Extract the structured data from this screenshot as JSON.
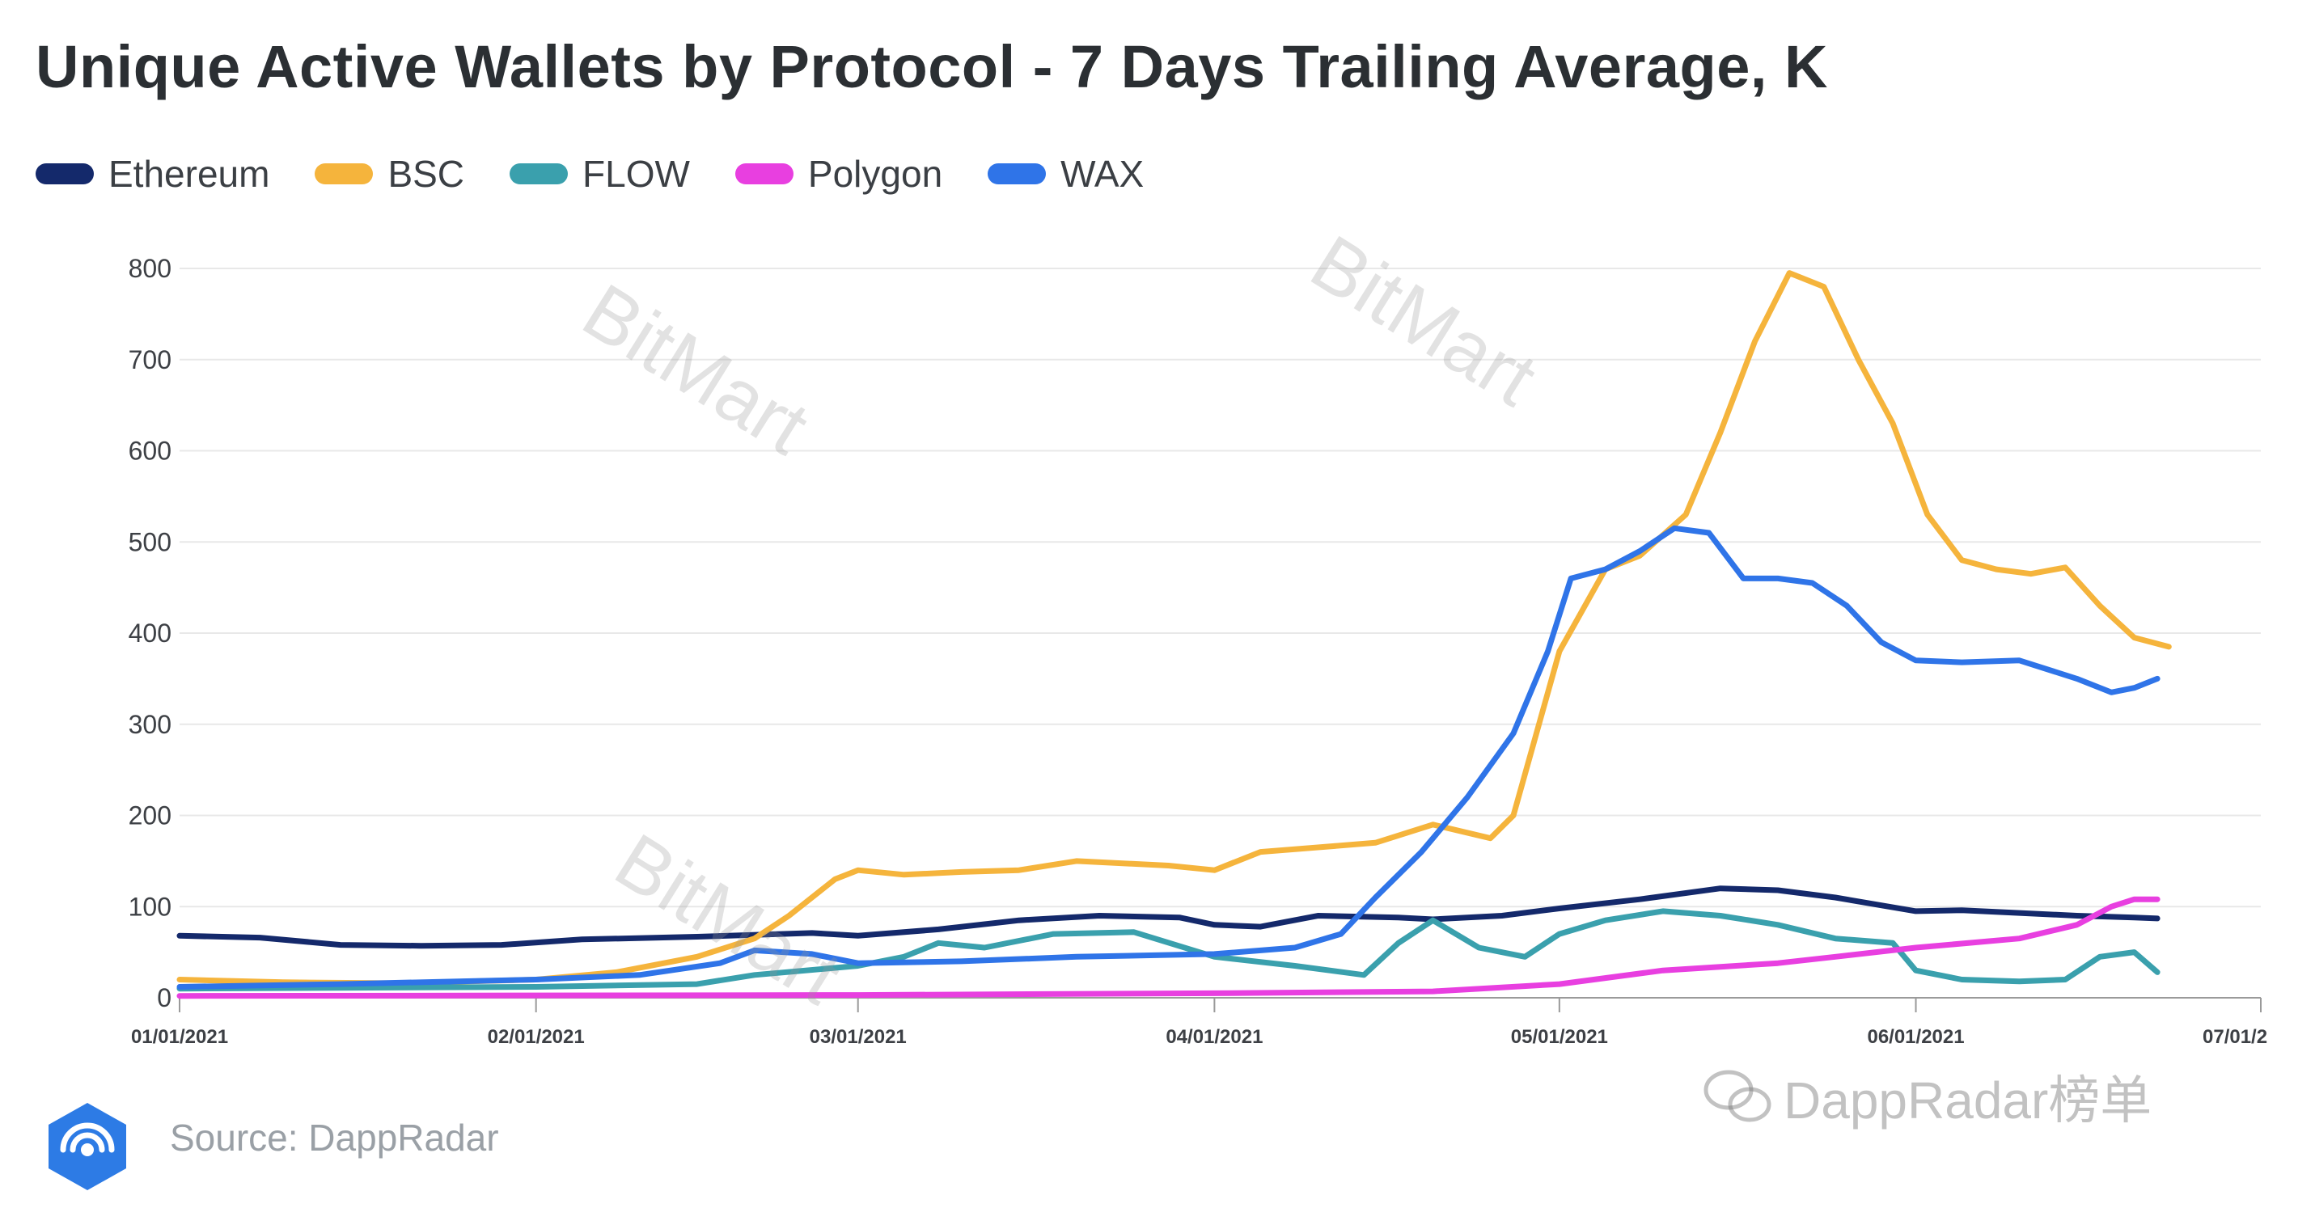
{
  "header": {
    "title": "Unique Active Wallets by Protocol - 7 Days Trailing Average, K"
  },
  "legend": [
    {
      "label": "Ethereum",
      "color": "#14296b"
    },
    {
      "label": "BSC",
      "color": "#f5b43c"
    },
    {
      "label": "FLOW",
      "color": "#3aa0ad"
    },
    {
      "label": "Polygon",
      "color": "#e83fe0"
    },
    {
      "label": "WAX",
      "color": "#2f74e8"
    }
  ],
  "footer": {
    "source": "Source: DappRadar",
    "mark": "DappRadar榜单"
  },
  "watermarks": [
    "BitMart",
    "BitMart",
    "BitMart"
  ],
  "chart_data": {
    "type": "line",
    "title": "Unique Active Wallets by Protocol - 7 Days Trailing Average, K",
    "ylim": [
      0,
      800
    ],
    "yticks": [
      0,
      100,
      200,
      300,
      400,
      500,
      600,
      700,
      800
    ],
    "xlim": [
      "2021-01-01",
      "2021-07-01"
    ],
    "xticks": [
      "01/01/2021",
      "02/01/2021",
      "03/01/2021",
      "04/01/2021",
      "05/01/2021",
      "06/01/2021",
      "07/01/2"
    ],
    "grid": true,
    "legend_position": "top-left",
    "series": [
      {
        "name": "Ethereum",
        "color": "#14296b",
        "points": [
          [
            "2021-01-01",
            68
          ],
          [
            "2021-01-08",
            66
          ],
          [
            "2021-01-15",
            58
          ],
          [
            "2021-01-22",
            57
          ],
          [
            "2021-01-29",
            58
          ],
          [
            "2021-02-05",
            64
          ],
          [
            "2021-02-15",
            67
          ],
          [
            "2021-02-25",
            71
          ],
          [
            "2021-03-01",
            68
          ],
          [
            "2021-03-08",
            75
          ],
          [
            "2021-03-15",
            85
          ],
          [
            "2021-03-22",
            90
          ],
          [
            "2021-03-29",
            88
          ],
          [
            "2021-04-01",
            80
          ],
          [
            "2021-04-05",
            78
          ],
          [
            "2021-04-10",
            90
          ],
          [
            "2021-04-17",
            88
          ],
          [
            "2021-04-20",
            86
          ],
          [
            "2021-04-26",
            90
          ],
          [
            "2021-05-01",
            98
          ],
          [
            "2021-05-08",
            108
          ],
          [
            "2021-05-15",
            120
          ],
          [
            "2021-05-20",
            118
          ],
          [
            "2021-05-25",
            110
          ],
          [
            "2021-06-01",
            95
          ],
          [
            "2021-06-05",
            96
          ],
          [
            "2021-06-10",
            93
          ],
          [
            "2021-06-15",
            90
          ],
          [
            "2021-06-20",
            88
          ],
          [
            "2021-06-22",
            87
          ]
        ]
      },
      {
        "name": "BSC",
        "color": "#f5b43c",
        "points": [
          [
            "2021-01-01",
            20
          ],
          [
            "2021-01-10",
            17
          ],
          [
            "2021-01-20",
            16
          ],
          [
            "2021-02-01",
            20
          ],
          [
            "2021-02-08",
            28
          ],
          [
            "2021-02-15",
            45
          ],
          [
            "2021-02-20",
            65
          ],
          [
            "2021-02-23",
            90
          ],
          [
            "2021-02-27",
            130
          ],
          [
            "2021-03-01",
            140
          ],
          [
            "2021-03-05",
            135
          ],
          [
            "2021-03-10",
            138
          ],
          [
            "2021-03-15",
            140
          ],
          [
            "2021-03-20",
            150
          ],
          [
            "2021-03-28",
            145
          ],
          [
            "2021-04-01",
            140
          ],
          [
            "2021-04-05",
            160
          ],
          [
            "2021-04-10",
            165
          ],
          [
            "2021-04-15",
            170
          ],
          [
            "2021-04-20",
            190
          ],
          [
            "2021-04-25",
            175
          ],
          [
            "2021-04-27",
            200
          ],
          [
            "2021-05-01",
            380
          ],
          [
            "2021-05-05",
            470
          ],
          [
            "2021-05-08",
            485
          ],
          [
            "2021-05-12",
            530
          ],
          [
            "2021-05-15",
            620
          ],
          [
            "2021-05-18",
            720
          ],
          [
            "2021-05-21",
            795
          ],
          [
            "2021-05-24",
            780
          ],
          [
            "2021-05-27",
            700
          ],
          [
            "2021-05-30",
            630
          ],
          [
            "2021-06-02",
            530
          ],
          [
            "2021-06-05",
            480
          ],
          [
            "2021-06-08",
            470
          ],
          [
            "2021-06-11",
            465
          ],
          [
            "2021-06-14",
            472
          ],
          [
            "2021-06-17",
            430
          ],
          [
            "2021-06-20",
            395
          ],
          [
            "2021-06-23",
            385
          ]
        ]
      },
      {
        "name": "FLOW",
        "color": "#3aa0ad",
        "points": [
          [
            "2021-01-01",
            10
          ],
          [
            "2021-02-01",
            12
          ],
          [
            "2021-02-15",
            15
          ],
          [
            "2021-02-20",
            25
          ],
          [
            "2021-03-01",
            35
          ],
          [
            "2021-03-05",
            45
          ],
          [
            "2021-03-08",
            60
          ],
          [
            "2021-03-12",
            55
          ],
          [
            "2021-03-18",
            70
          ],
          [
            "2021-03-25",
            72
          ],
          [
            "2021-04-01",
            45
          ],
          [
            "2021-04-08",
            35
          ],
          [
            "2021-04-14",
            25
          ],
          [
            "2021-04-17",
            60
          ],
          [
            "2021-04-20",
            85
          ],
          [
            "2021-04-24",
            55
          ],
          [
            "2021-04-28",
            45
          ],
          [
            "2021-05-01",
            70
          ],
          [
            "2021-05-05",
            85
          ],
          [
            "2021-05-10",
            95
          ],
          [
            "2021-05-15",
            90
          ],
          [
            "2021-05-20",
            80
          ],
          [
            "2021-05-25",
            65
          ],
          [
            "2021-05-30",
            60
          ],
          [
            "2021-06-01",
            30
          ],
          [
            "2021-06-05",
            20
          ],
          [
            "2021-06-10",
            18
          ],
          [
            "2021-06-14",
            20
          ],
          [
            "2021-06-17",
            45
          ],
          [
            "2021-06-20",
            50
          ],
          [
            "2021-06-22",
            28
          ]
        ]
      },
      {
        "name": "Polygon",
        "color": "#e83fe0",
        "points": [
          [
            "2021-01-01",
            2
          ],
          [
            "2021-03-01",
            3
          ],
          [
            "2021-04-01",
            5
          ],
          [
            "2021-04-20",
            7
          ],
          [
            "2021-05-01",
            15
          ],
          [
            "2021-05-10",
            30
          ],
          [
            "2021-05-20",
            38
          ],
          [
            "2021-05-25",
            45
          ],
          [
            "2021-06-01",
            55
          ],
          [
            "2021-06-10",
            65
          ],
          [
            "2021-06-15",
            80
          ],
          [
            "2021-06-18",
            100
          ],
          [
            "2021-06-20",
            108
          ],
          [
            "2021-06-22",
            108
          ]
        ]
      },
      {
        "name": "WAX",
        "color": "#2f74e8",
        "points": [
          [
            "2021-01-01",
            12
          ],
          [
            "2021-01-15",
            15
          ],
          [
            "2021-02-01",
            20
          ],
          [
            "2021-02-10",
            25
          ],
          [
            "2021-02-17",
            38
          ],
          [
            "2021-02-20",
            52
          ],
          [
            "2021-02-25",
            48
          ],
          [
            "2021-03-01",
            38
          ],
          [
            "2021-03-10",
            40
          ],
          [
            "2021-03-20",
            45
          ],
          [
            "2021-04-01",
            48
          ],
          [
            "2021-04-08",
            55
          ],
          [
            "2021-04-12",
            70
          ],
          [
            "2021-04-15",
            110
          ],
          [
            "2021-04-19",
            160
          ],
          [
            "2021-04-23",
            220
          ],
          [
            "2021-04-27",
            290
          ],
          [
            "2021-04-30",
            380
          ],
          [
            "2021-05-02",
            460
          ],
          [
            "2021-05-05",
            470
          ],
          [
            "2021-05-08",
            490
          ],
          [
            "2021-05-11",
            515
          ],
          [
            "2021-05-14",
            510
          ],
          [
            "2021-05-17",
            460
          ],
          [
            "2021-05-20",
            460
          ],
          [
            "2021-05-23",
            455
          ],
          [
            "2021-05-26",
            430
          ],
          [
            "2021-05-29",
            390
          ],
          [
            "2021-06-01",
            370
          ],
          [
            "2021-06-05",
            368
          ],
          [
            "2021-06-10",
            370
          ],
          [
            "2021-06-15",
            350
          ],
          [
            "2021-06-18",
            335
          ],
          [
            "2021-06-20",
            340
          ],
          [
            "2021-06-22",
            350
          ]
        ]
      }
    ]
  }
}
